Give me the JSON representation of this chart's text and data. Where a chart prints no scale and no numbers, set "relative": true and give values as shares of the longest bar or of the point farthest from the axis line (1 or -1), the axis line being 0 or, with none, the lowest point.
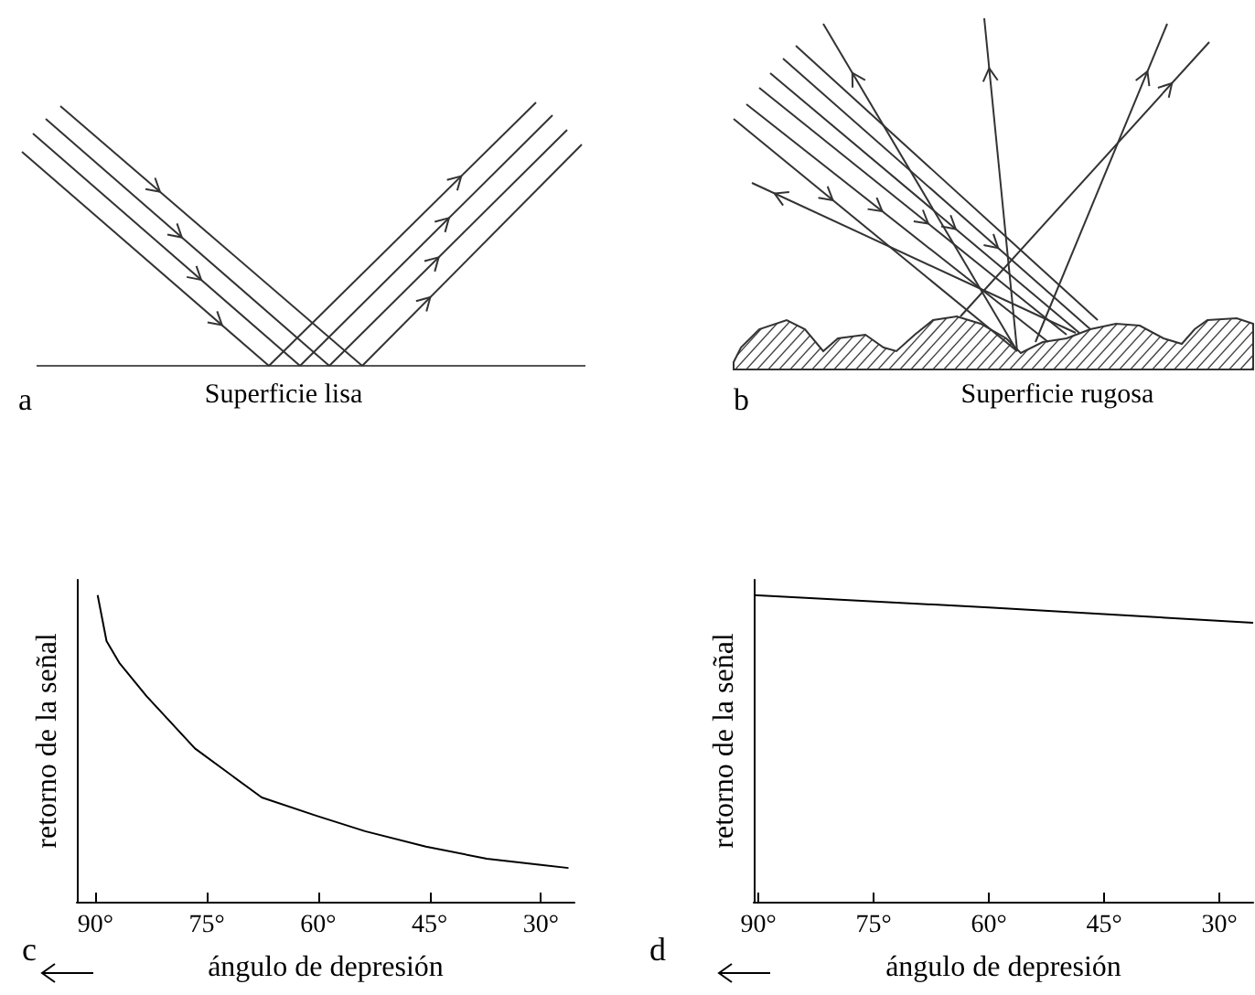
{
  "chart_data": [
    {
      "type": "other",
      "title": "Superficie lisa",
      "annotations": [
        "a"
      ]
    },
    {
      "type": "other",
      "title": "Superficie rugosa",
      "annotations": [
        "b"
      ]
    },
    {
      "type": "line",
      "xlabel": "ángulo de depresión",
      "ylabel": "retorno de la señal",
      "annotations": [
        "c"
      ],
      "relative": true,
      "xlim": [
        92.5,
        25.5
      ],
      "xticks": [
        {
          "value": 90,
          "label": "90°"
        },
        {
          "value": 75,
          "label": "75°"
        },
        {
          "value": 60,
          "label": "60°"
        },
        {
          "value": 45,
          "label": "45°"
        },
        {
          "value": 30,
          "label": "30°"
        }
      ],
      "x": [
        89.7,
        88.5,
        86.8,
        83.1,
        76.6,
        67.6,
        60.2,
        53.7,
        45.5,
        37.3,
        30,
        26.3
      ],
      "values": [
        1,
        0.85,
        0.78,
        0.67,
        0.5,
        0.34,
        0.28,
        0.23,
        0.18,
        0.14,
        0.12,
        0.11
      ],
      "color": "#000000"
    },
    {
      "type": "line",
      "xlabel": "ángulo de depresión",
      "ylabel": "retorno de la señal",
      "annotations": [
        "d"
      ],
      "relative": true,
      "xlim": [
        90.6,
        25.6
      ],
      "xticks": [
        {
          "value": 90,
          "label": "90°"
        },
        {
          "value": 75,
          "label": "75°"
        },
        {
          "value": 60,
          "label": "60°"
        },
        {
          "value": 45,
          "label": "45°"
        },
        {
          "value": 30,
          "label": "30°"
        }
      ],
      "x": [
        90.6,
        60,
        25.6
      ],
      "values": [
        1,
        0.96,
        0.91
      ],
      "color": "#000000"
    }
  ]
}
